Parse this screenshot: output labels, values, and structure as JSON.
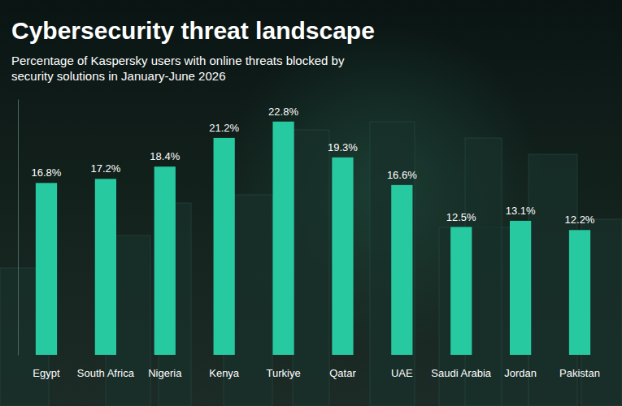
{
  "chart_data": {
    "type": "bar",
    "title": "Cybersecurity threat landscape",
    "subtitle": "Percentage of Kaspersky users with online threats blocked by security solutions in January-June 2026",
    "categories": [
      "Egypt",
      "South Africa",
      "Nigeria",
      "Kenya",
      "Turkiye",
      "Qatar",
      "UAE",
      "Saudi Arabia",
      "Jordan",
      "Pakistan"
    ],
    "values": [
      16.8,
      17.2,
      18.4,
      21.2,
      22.8,
      19.3,
      16.6,
      12.5,
      13.1,
      12.2
    ],
    "value_labels": [
      "16.8%",
      "17.2%",
      "18.4%",
      "21.2%",
      "22.8%",
      "19.3%",
      "16.6%",
      "12.5%",
      "13.1%",
      "12.2%"
    ],
    "color": "#27c9a0",
    "ylim": [
      0,
      25
    ],
    "grid": false,
    "data_labels": true,
    "tick_labels": "x"
  }
}
